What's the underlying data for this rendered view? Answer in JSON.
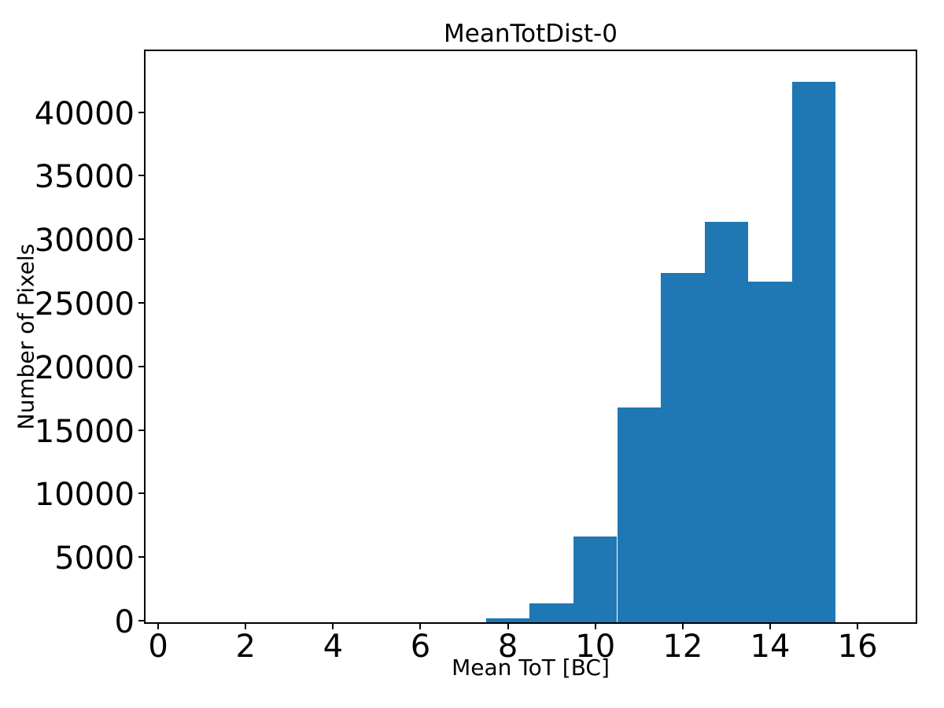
{
  "figure": {
    "title": "MeanTotDist-0",
    "xlabel": "Mean ToT [BC]",
    "ylabel": "Number of Pixels",
    "background_color": "#ffffff",
    "axis_color": "#000000"
  },
  "chart_data": {
    "type": "bar",
    "subtype": "histogram",
    "title": "MeanTotDist-0",
    "xlabel": "Mean ToT [BC]",
    "ylabel": "Number of Pixels",
    "bin_edges": [
      7.5,
      8.5,
      9.5,
      10.5,
      11.5,
      12.5,
      13.5,
      14.5,
      15.5
    ],
    "values": [
      300,
      1500,
      6750,
      16900,
      27500,
      31500,
      26800,
      42500
    ],
    "bar_color": "#1f77b4",
    "xlim": [
      -0.29,
      17.33
    ],
    "ylim": [
      0,
      44920
    ],
    "xticks": [
      0,
      2,
      4,
      6,
      8,
      10,
      12,
      14,
      16
    ],
    "yticks": [
      0,
      5000,
      10000,
      15000,
      20000,
      25000,
      30000,
      35000,
      40000
    ],
    "grid": false,
    "legend": null
  }
}
